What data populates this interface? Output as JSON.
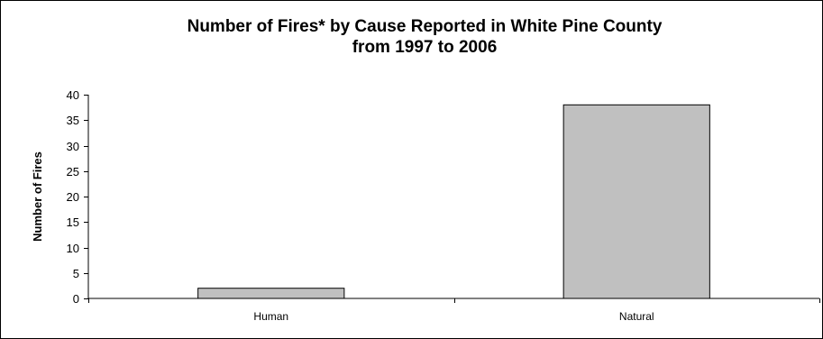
{
  "chart_data": {
    "type": "bar",
    "title": "Number of Fires* by Cause Reported in White Pine County",
    "title_line2": "from 1997 to 2006",
    "categories": [
      "Human",
      "Natural"
    ],
    "values": [
      2,
      38
    ],
    "xlabel": "",
    "ylabel": "Number of Fires",
    "ylim": [
      0,
      40
    ],
    "yticks": [
      0,
      5,
      10,
      15,
      20,
      25,
      30,
      35,
      40
    ],
    "grid": false,
    "legend": "none",
    "bar_color": "#c0c0c0",
    "bar_edge_color": "#000000"
  }
}
